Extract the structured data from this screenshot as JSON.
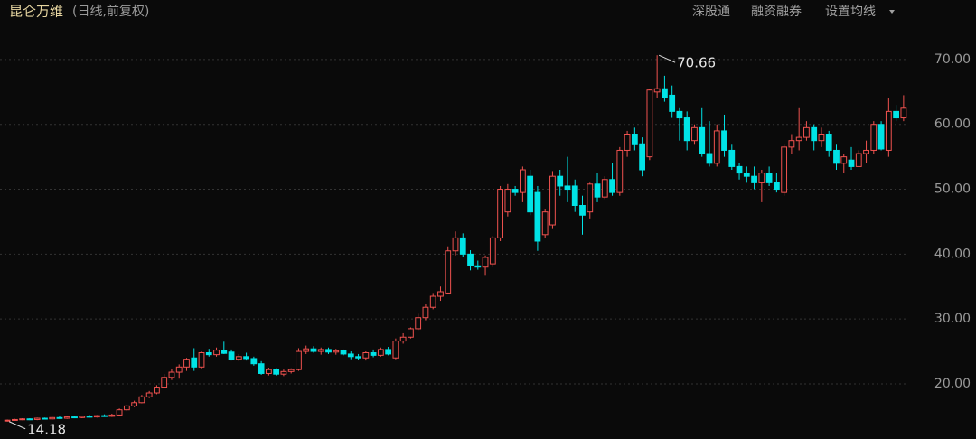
{
  "header": {
    "title": "昆仑万维",
    "subtitle": "(日线,前复权)",
    "buttons": [
      "深股通",
      "融资融券",
      "设置均线"
    ]
  },
  "chart_data": {
    "type": "candlestick",
    "up_color": "#f0524f",
    "down_color": "#00e3e6",
    "ylim": [
      11.5,
      75.7
    ],
    "yticks": [
      {
        "value": 20,
        "label": "20.00"
      },
      {
        "value": 30,
        "label": "30.00"
      },
      {
        "value": 40,
        "label": "40.00"
      },
      {
        "value": 50,
        "label": "50.00"
      },
      {
        "value": 60,
        "label": "60.00"
      },
      {
        "value": 70,
        "label": "70.00"
      }
    ],
    "grid": true,
    "annotations": [
      {
        "value": 70.66,
        "label": "70.66"
      },
      {
        "value": 14.18,
        "label": "14.18"
      }
    ],
    "ohlc": [
      [
        14.3,
        14.5,
        14.18,
        14.4
      ],
      [
        14.4,
        14.6,
        14.3,
        14.5
      ],
      [
        14.5,
        14.7,
        14.4,
        14.6
      ],
      [
        14.6,
        14.7,
        14.4,
        14.5
      ],
      [
        14.5,
        14.8,
        14.4,
        14.7
      ],
      [
        14.7,
        14.8,
        14.5,
        14.6
      ],
      [
        14.6,
        14.9,
        14.5,
        14.8
      ],
      [
        14.8,
        15.0,
        14.6,
        14.7
      ],
      [
        14.7,
        15.0,
        14.6,
        14.9
      ],
      [
        14.9,
        15.1,
        14.7,
        14.8
      ],
      [
        14.8,
        15.1,
        14.7,
        15.0
      ],
      [
        15.0,
        15.2,
        14.8,
        14.9
      ],
      [
        14.9,
        15.2,
        14.8,
        15.1
      ],
      [
        15.1,
        15.3,
        14.9,
        15.0
      ],
      [
        15.0,
        15.4,
        14.9,
        15.2
      ],
      [
        15.2,
        16.2,
        15.1,
        16.0
      ],
      [
        16.0,
        16.8,
        15.8,
        16.6
      ],
      [
        16.6,
        17.4,
        16.4,
        17.1
      ],
      [
        17.1,
        18.3,
        17.0,
        18.0
      ],
      [
        18.0,
        18.9,
        17.8,
        18.6
      ],
      [
        18.6,
        19.8,
        18.4,
        19.5
      ],
      [
        19.5,
        21.5,
        19.3,
        21.0
      ],
      [
        21.0,
        22.3,
        20.6,
        21.8
      ],
      [
        21.8,
        23.0,
        20.8,
        22.6
      ],
      [
        22.6,
        24.0,
        22.0,
        23.8
      ],
      [
        24.0,
        25.5,
        22.0,
        22.6
      ],
      [
        22.6,
        25.0,
        22.3,
        24.8
      ],
      [
        24.8,
        25.4,
        24.2,
        24.5
      ],
      [
        24.5,
        25.6,
        24.2,
        25.2
      ],
      [
        25.2,
        26.5,
        24.6,
        24.7
      ],
      [
        24.9,
        25.3,
        23.6,
        23.8
      ],
      [
        23.8,
        24.6,
        23.5,
        24.2
      ],
      [
        24.2,
        24.8,
        23.6,
        23.9
      ],
      [
        23.9,
        24.2,
        22.8,
        23.1
      ],
      [
        23.1,
        23.5,
        21.4,
        21.6
      ],
      [
        21.6,
        22.5,
        21.3,
        22.2
      ],
      [
        22.2,
        22.4,
        21.3,
        21.5
      ],
      [
        21.5,
        22.2,
        21.2,
        21.9
      ],
      [
        21.9,
        22.4,
        21.6,
        22.2
      ],
      [
        22.2,
        25.5,
        22.0,
        25.0
      ],
      [
        25.0,
        25.9,
        24.6,
        25.4
      ],
      [
        25.4,
        25.8,
        24.8,
        25.0
      ],
      [
        25.0,
        25.6,
        24.5,
        25.3
      ],
      [
        25.3,
        25.6,
        24.6,
        24.9
      ],
      [
        24.9,
        25.4,
        24.5,
        25.1
      ],
      [
        25.1,
        25.3,
        24.4,
        24.6
      ],
      [
        24.6,
        25.0,
        23.8,
        24.2
      ],
      [
        24.2,
        24.6,
        23.7,
        24.0
      ],
      [
        24.0,
        25.0,
        23.6,
        24.8
      ],
      [
        24.8,
        25.3,
        24.1,
        24.4
      ],
      [
        24.4,
        25.6,
        24.2,
        25.3
      ],
      [
        25.3,
        25.7,
        24.4,
        24.6
      ],
      [
        24.0,
        27.0,
        23.8,
        26.6
      ],
      [
        26.6,
        27.8,
        26.2,
        27.2
      ],
      [
        27.2,
        28.7,
        27.0,
        28.5
      ],
      [
        28.5,
        30.8,
        28.3,
        30.2
      ],
      [
        30.2,
        32.3,
        29.8,
        31.8
      ],
      [
        31.8,
        34.0,
        31.5,
        33.5
      ],
      [
        33.5,
        35.0,
        32.8,
        34.2
      ],
      [
        34.0,
        41.2,
        33.8,
        40.5
      ],
      [
        40.5,
        43.5,
        39.8,
        42.5
      ],
      [
        42.5,
        43.2,
        39.5,
        40.0
      ],
      [
        40.0,
        40.6,
        37.5,
        38.2
      ],
      [
        38.2,
        39.0,
        37.6,
        38.0
      ],
      [
        38.0,
        39.8,
        36.8,
        39.5
      ],
      [
        38.5,
        42.8,
        38.0,
        42.5
      ],
      [
        42.5,
        50.5,
        42.0,
        50.0
      ],
      [
        46.5,
        50.8,
        45.8,
        50.0
      ],
      [
        50.0,
        50.5,
        49.0,
        49.5
      ],
      [
        49.5,
        53.5,
        48.0,
        53.0
      ],
      [
        52.0,
        53.0,
        46.0,
        46.5
      ],
      [
        49.5,
        50.5,
        40.5,
        42.0
      ],
      [
        43.0,
        47.0,
        42.5,
        46.5
      ],
      [
        44.5,
        52.8,
        44.0,
        52.0
      ],
      [
        52.0,
        53.0,
        49.0,
        50.5
      ],
      [
        50.5,
        55.0,
        48.0,
        50.0
      ],
      [
        50.5,
        51.5,
        46.5,
        47.5
      ],
      [
        47.5,
        49.0,
        43.0,
        46.0
      ],
      [
        46.5,
        51.0,
        45.5,
        50.8
      ],
      [
        50.8,
        52.5,
        48.0,
        48.8
      ],
      [
        48.8,
        52.0,
        48.5,
        51.5
      ],
      [
        51.5,
        54.0,
        49.0,
        49.5
      ],
      [
        49.5,
        56.5,
        49.0,
        56.0
      ],
      [
        56.0,
        59.0,
        55.0,
        58.5
      ],
      [
        58.5,
        59.5,
        56.0,
        57.0
      ],
      [
        57.0,
        58.0,
        52.0,
        53.0
      ],
      [
        55.0,
        65.5,
        54.5,
        65.3
      ],
      [
        65.0,
        70.66,
        64.0,
        65.5
      ],
      [
        65.5,
        67.5,
        63.5,
        64.2
      ],
      [
        64.5,
        66.0,
        61.0,
        62.0
      ],
      [
        62.0,
        62.5,
        57.5,
        61.0
      ],
      [
        61.0,
        62.0,
        56.0,
        57.5
      ],
      [
        57.5,
        60.0,
        57.0,
        59.5
      ],
      [
        59.5,
        62.5,
        55.0,
        55.5
      ],
      [
        55.5,
        60.5,
        53.5,
        54.0
      ],
      [
        54.0,
        60.0,
        53.5,
        59.0
      ],
      [
        59.0,
        61.5,
        55.0,
        56.0
      ],
      [
        56.0,
        57.0,
        53.0,
        53.5
      ],
      [
        53.5,
        54.0,
        51.5,
        52.5
      ],
      [
        52.5,
        53.5,
        51.0,
        52.0
      ],
      [
        52.0,
        53.5,
        50.0,
        51.0
      ],
      [
        51.0,
        53.0,
        48.0,
        52.5
      ],
      [
        52.5,
        53.5,
        50.5,
        51.0
      ],
      [
        51.0,
        52.5,
        49.5,
        50.0
      ],
      [
        49.5,
        57.0,
        49.0,
        56.5
      ],
      [
        56.5,
        58.5,
        55.5,
        57.5
      ],
      [
        57.5,
        62.5,
        56.0,
        58.0
      ],
      [
        58.0,
        60.5,
        57.5,
        59.5
      ],
      [
        59.5,
        60.0,
        56.0,
        57.5
      ],
      [
        57.5,
        59.5,
        56.5,
        58.5
      ],
      [
        58.5,
        59.0,
        55.0,
        56.0
      ],
      [
        56.0,
        57.0,
        53.0,
        54.0
      ],
      [
        54.0,
        55.5,
        52.5,
        55.0
      ],
      [
        54.5,
        56.5,
        53.0,
        53.5
      ],
      [
        53.5,
        56.0,
        53.5,
        55.5
      ],
      [
        55.5,
        57.5,
        54.0,
        56.0
      ],
      [
        56.0,
        60.5,
        55.5,
        60.0
      ],
      [
        60.0,
        60.5,
        56.0,
        56.2
      ],
      [
        56.0,
        64.0,
        55.0,
        62.0
      ],
      [
        62.0,
        63.0,
        60.5,
        61.0
      ],
      [
        61.0,
        64.5,
        60.5,
        62.5
      ]
    ]
  }
}
